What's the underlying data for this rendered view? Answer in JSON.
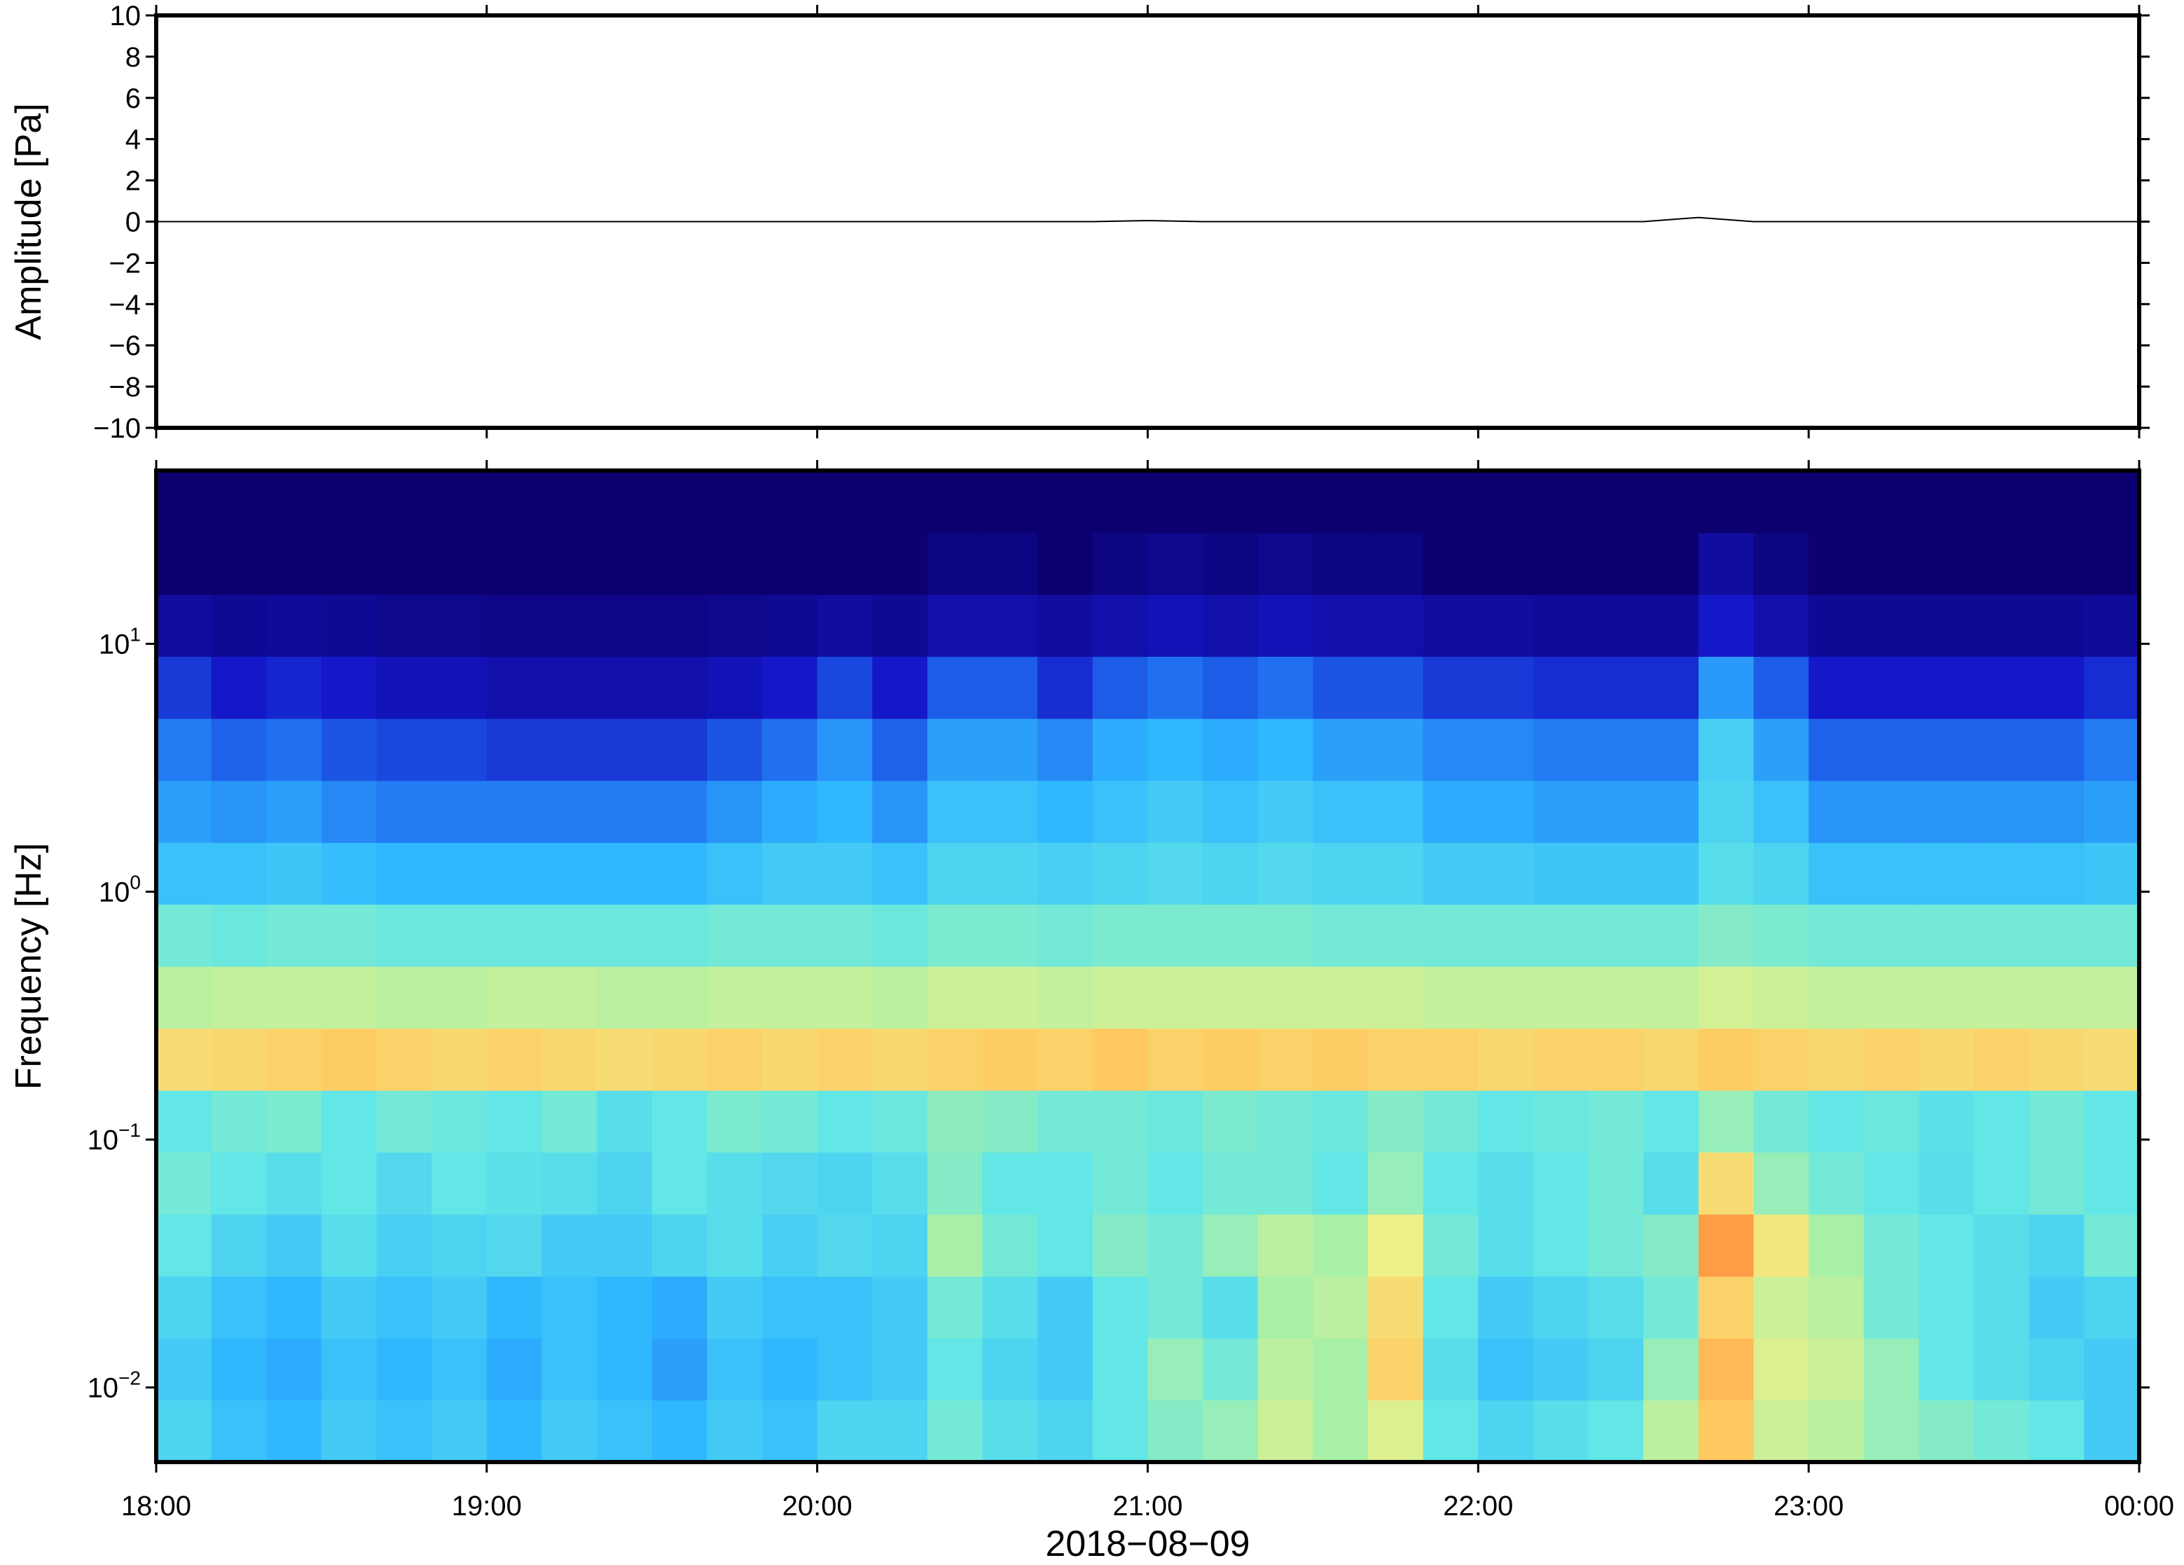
{
  "chart_data": [
    {
      "type": "line",
      "ylabel": "Amplitude [Pa]",
      "xlim": [
        0,
        360
      ],
      "ylim": [
        -10,
        10
      ],
      "yticks": [
        {
          "value": -10,
          "label": "−10"
        },
        {
          "value": -8,
          "label": "−8"
        },
        {
          "value": -6,
          "label": "−6"
        },
        {
          "value": -4,
          "label": "−4"
        },
        {
          "value": -2,
          "label": "−2"
        },
        0,
        2,
        4,
        6,
        8,
        10
      ],
      "x": [
        0,
        10,
        20,
        30,
        40,
        50,
        60,
        70,
        80,
        90,
        100,
        110,
        120,
        130,
        140,
        150,
        160,
        170,
        180,
        190,
        200,
        210,
        220,
        230,
        240,
        250,
        260,
        270,
        280,
        290,
        300,
        310,
        320,
        330,
        340,
        350,
        360
      ],
      "series": [
        {
          "color": "#000000",
          "values": [
            0,
            0,
            0,
            0,
            0,
            0,
            0,
            0,
            0,
            0,
            0,
            0,
            0,
            0,
            0,
            0,
            0,
            0,
            0.05,
            0,
            0,
            0,
            0,
            0,
            0,
            0,
            0,
            0,
            0.2,
            0,
            0,
            0,
            0,
            0,
            0,
            0,
            0
          ]
        }
      ]
    },
    {
      "type": "heatmap",
      "ylabel": "Frequency [Hz]",
      "xlabel": "2018−08−09",
      "log_y": true,
      "xlim": [
        0,
        360
      ],
      "ylim": [
        0.005,
        50
      ],
      "xticks": [
        {
          "value": 0,
          "label": "18:00"
        },
        {
          "value": 60,
          "label": "19:00"
        },
        {
          "value": 120,
          "label": "20:00"
        },
        {
          "value": 180,
          "label": "21:00"
        },
        {
          "value": 240,
          "label": "22:00"
        },
        {
          "value": 300,
          "label": "23:00"
        },
        {
          "value": 360,
          "label": "00:00"
        }
      ],
      "yticks": [
        {
          "value": 0.01,
          "label": "10",
          "exponent": "−2"
        },
        {
          "value": 0.1,
          "label": "10",
          "exponent": "−1"
        },
        {
          "value": 1,
          "label": "10",
          "exponent": "0"
        },
        {
          "value": 10,
          "label": "10",
          "exponent": "1"
        }
      ],
      "x_bins": [
        0,
        10,
        20,
        30,
        40,
        50,
        60,
        70,
        80,
        90,
        100,
        110,
        120,
        130,
        140,
        150,
        160,
        170,
        180,
        190,
        200,
        210,
        220,
        230,
        240,
        250,
        260,
        270,
        280,
        290,
        300,
        310,
        320,
        330,
        340,
        350,
        360
      ],
      "y_bins": [
        0.005,
        0.0089,
        0.0158,
        0.0281,
        0.05,
        0.089,
        0.158,
        0.281,
        0.5,
        0.89,
        1.58,
        2.81,
        5,
        8.9,
        15.8,
        28.1,
        50
      ],
      "colormap": [
        [
          0,
          "#0c0070"
        ],
        [
          15,
          "#1418c8"
        ],
        [
          28,
          "#2070f0"
        ],
        [
          40,
          "#30b8ff"
        ],
        [
          50,
          "#62e6e6"
        ],
        [
          58,
          "#a8f0a8"
        ],
        [
          66,
          "#eef088"
        ],
        [
          74,
          "#ffc860"
        ],
        [
          85,
          "#ff7830"
        ]
      ],
      "z": [
        [
          46,
          42,
          40,
          44,
          42,
          44,
          40,
          44,
          42,
          40,
          44,
          42,
          46,
          46,
          52,
          48,
          46,
          50,
          54,
          56,
          62,
          58,
          64,
          50,
          46,
          48,
          50,
          60,
          74,
          62,
          60,
          56,
          54,
          52,
          50,
          44
        ],
        [
          44,
          40,
          38,
          42,
          40,
          42,
          38,
          42,
          40,
          36,
          42,
          40,
          42,
          44,
          50,
          46,
          44,
          50,
          56,
          52,
          60,
          58,
          72,
          48,
          42,
          44,
          46,
          56,
          76,
          64,
          62,
          56,
          50,
          48,
          46,
          44
        ],
        [
          46,
          42,
          40,
          44,
          42,
          44,
          40,
          42,
          40,
          38,
          44,
          42,
          42,
          44,
          52,
          48,
          44,
          50,
          52,
          48,
          58,
          60,
          70,
          50,
          44,
          46,
          48,
          52,
          72,
          62,
          60,
          52,
          50,
          48,
          44,
          46
        ],
        [
          50,
          46,
          44,
          48,
          45,
          46,
          47,
          44,
          44,
          46,
          48,
          45,
          47,
          46,
          58,
          52,
          50,
          54,
          52,
          56,
          60,
          58,
          66,
          52,
          48,
          50,
          52,
          54,
          80,
          68,
          58,
          52,
          50,
          48,
          46,
          52
        ],
        [
          52,
          50,
          48,
          50,
          47,
          50,
          49,
          48,
          46,
          50,
          48,
          47,
          46,
          48,
          54,
          50,
          50,
          52,
          50,
          52,
          52,
          50,
          56,
          50,
          48,
          50,
          52,
          48,
          70,
          56,
          52,
          50,
          48,
          50,
          52,
          50
        ],
        [
          50,
          52,
          53,
          50,
          52,
          51,
          50,
          52,
          48,
          50,
          53,
          52,
          50,
          51,
          55,
          54,
          52,
          52,
          51,
          53,
          52,
          51,
          54,
          52,
          50,
          51,
          52,
          50,
          56,
          52,
          50,
          51,
          49,
          50,
          52,
          50
        ],
        [
          70,
          71,
          72,
          73,
          72,
          71,
          72,
          71,
          70,
          71,
          72,
          71,
          72,
          71,
          72,
          73,
          72,
          74,
          72,
          73,
          72,
          73,
          72,
          72,
          71,
          72,
          72,
          71,
          73,
          72,
          71,
          72,
          71,
          72,
          71,
          70
        ],
        [
          60,
          61,
          61,
          61,
          60,
          60,
          61,
          61,
          60,
          60,
          61,
          61,
          61,
          60,
          62,
          62,
          61,
          62,
          62,
          62,
          62,
          62,
          62,
          61,
          61,
          61,
          61,
          61,
          63,
          62,
          61,
          61,
          61,
          61,
          61,
          61
        ],
        [
          52,
          51,
          52,
          52,
          51,
          51,
          51,
          51,
          51,
          51,
          52,
          52,
          52,
          51,
          53,
          53,
          52,
          53,
          53,
          53,
          53,
          52,
          52,
          52,
          52,
          52,
          52,
          52,
          54,
          53,
          52,
          52,
          52,
          52,
          52,
          52
        ],
        [
          42,
          42,
          43,
          41,
          40,
          40,
          40,
          40,
          40,
          40,
          42,
          44,
          44,
          42,
          46,
          46,
          45,
          46,
          47,
          46,
          47,
          46,
          46,
          44,
          44,
          43,
          43,
          43,
          48,
          46,
          42,
          42,
          42,
          42,
          42,
          43
        ],
        [
          36,
          34,
          36,
          32,
          30,
          30,
          30,
          30,
          30,
          30,
          34,
          38,
          40,
          34,
          42,
          42,
          40,
          42,
          44,
          42,
          44,
          42,
          42,
          38,
          38,
          36,
          36,
          36,
          46,
          42,
          34,
          34,
          34,
          34,
          34,
          36
        ],
        [
          30,
          26,
          28,
          24,
          22,
          22,
          20,
          20,
          20,
          20,
          24,
          28,
          34,
          26,
          36,
          36,
          32,
          38,
          40,
          38,
          40,
          36,
          36,
          32,
          32,
          30,
          30,
          30,
          45,
          36,
          26,
          26,
          26,
          26,
          26,
          30
        ],
        [
          20,
          15,
          17,
          15,
          12,
          12,
          10,
          10,
          10,
          10,
          12,
          15,
          22,
          15,
          25,
          25,
          18,
          25,
          28,
          25,
          28,
          24,
          24,
          20,
          20,
          18,
          18,
          18,
          35,
          25,
          15,
          15,
          15,
          15,
          15,
          18
        ],
        [
          8,
          6,
          7,
          6,
          5,
          5,
          4,
          4,
          4,
          4,
          5,
          6,
          8,
          6,
          10,
          10,
          8,
          10,
          12,
          10,
          12,
          10,
          10,
          8,
          8,
          7,
          7,
          7,
          15,
          10,
          6,
          6,
          6,
          6,
          6,
          7
        ],
        [
          0,
          0,
          0,
          0,
          0,
          0,
          0,
          0,
          0,
          0,
          0,
          0,
          0,
          0,
          3,
          3,
          0,
          3,
          5,
          3,
          5,
          3,
          3,
          0,
          0,
          0,
          0,
          0,
          8,
          3,
          0,
          0,
          0,
          0,
          0,
          0
        ],
        [
          0,
          0,
          0,
          0,
          0,
          0,
          0,
          0,
          0,
          0,
          0,
          0,
          0,
          0,
          0,
          0,
          0,
          0,
          0,
          0,
          0,
          0,
          0,
          0,
          0,
          0,
          0,
          0,
          0,
          0,
          0,
          0,
          0,
          0,
          0,
          0
        ]
      ]
    }
  ]
}
